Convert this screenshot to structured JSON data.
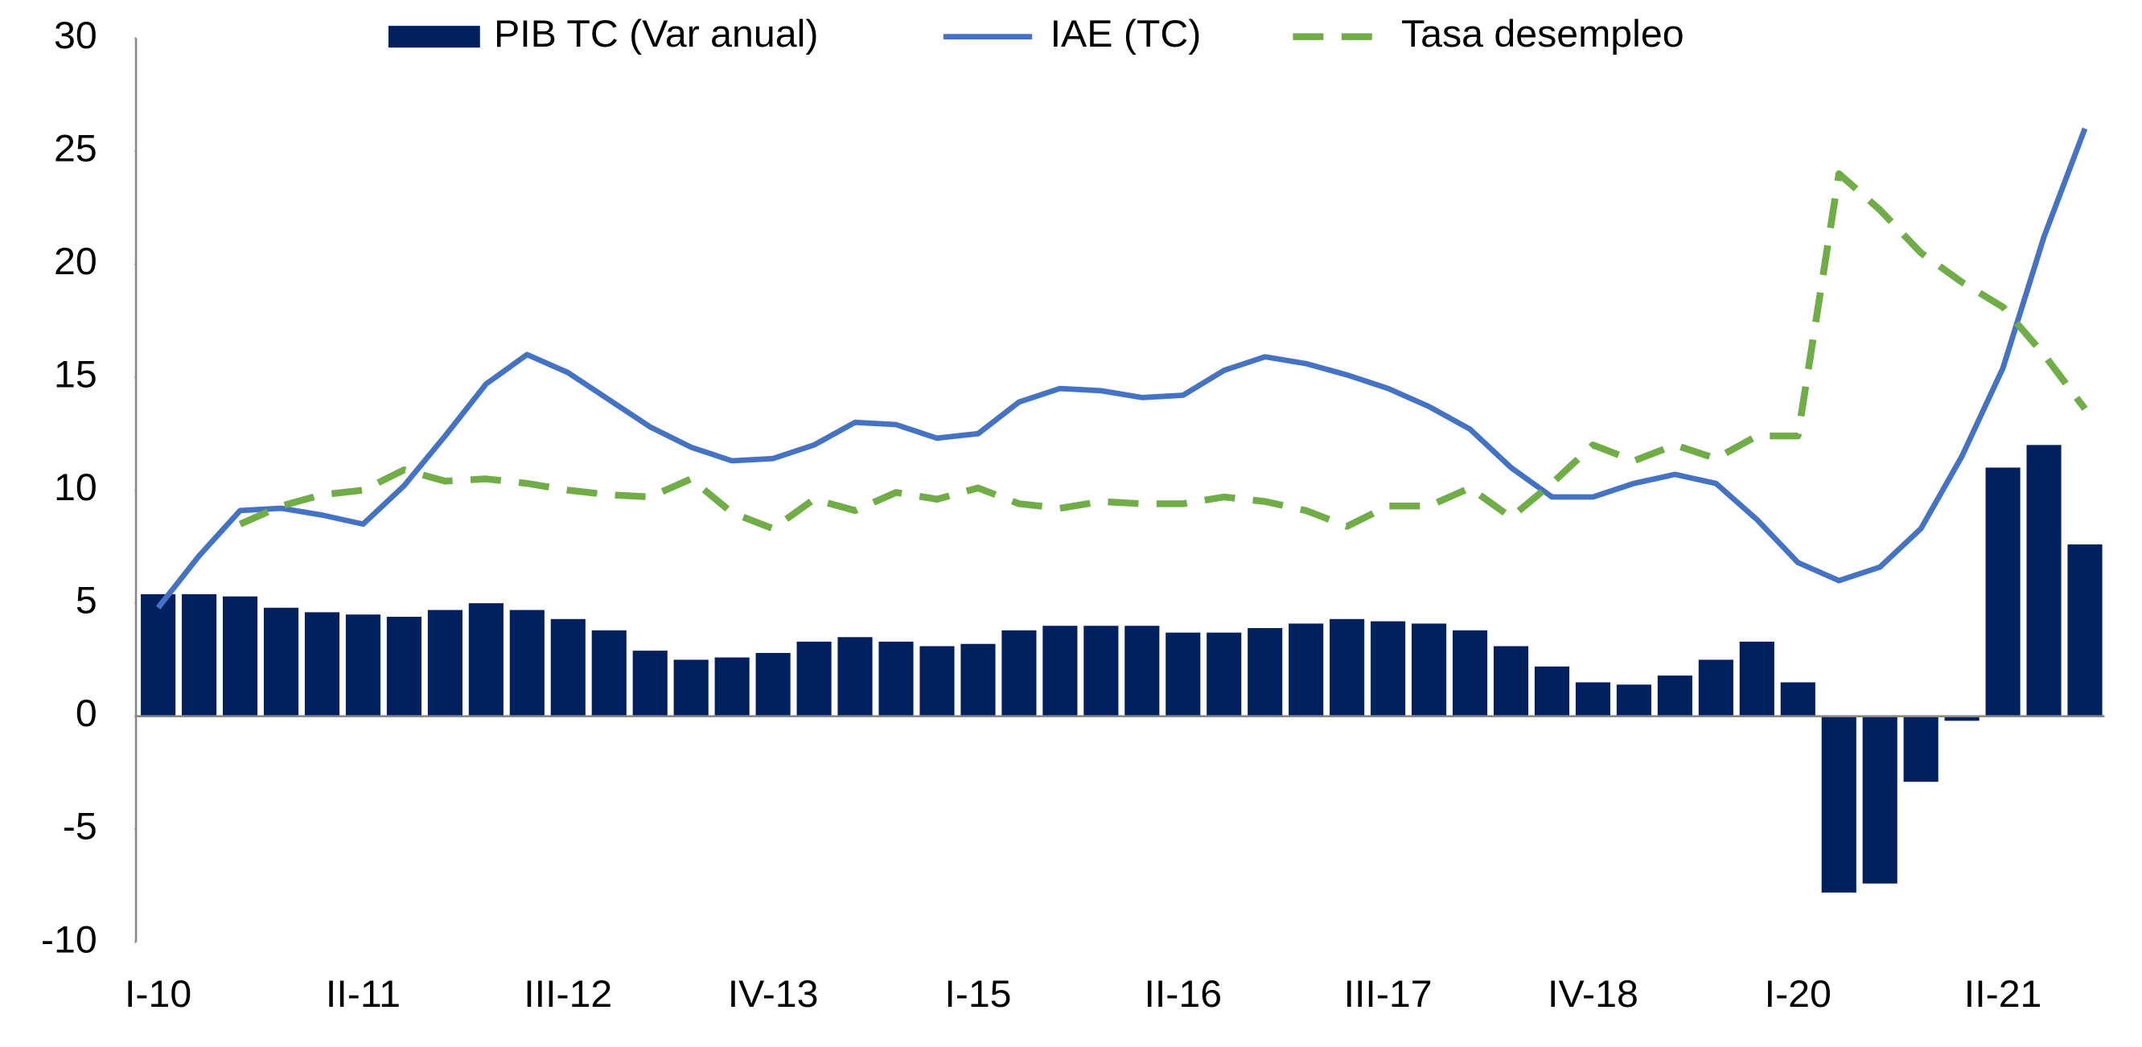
{
  "chart_data": {
    "type": "bar",
    "categories": [
      "I-10",
      null,
      null,
      null,
      null,
      "II-11",
      null,
      null,
      null,
      null,
      "III-12",
      null,
      null,
      null,
      null,
      "IV-13",
      null,
      null,
      null,
      null,
      "I-15",
      null,
      null,
      null,
      null,
      "II-16",
      null,
      null,
      null,
      null,
      "III-17",
      null,
      null,
      null,
      null,
      "IV-18",
      null,
      null,
      null,
      null,
      "I-20",
      null,
      null,
      null,
      null,
      "II-21",
      null,
      null
    ],
    "series": [
      {
        "name": "PIB TC (Var anual)",
        "type": "bar",
        "color": "#002060",
        "values": [
          5.4,
          5.4,
          5.3,
          4.8,
          4.6,
          4.5,
          4.4,
          4.7,
          5.0,
          4.7,
          4.3,
          3.8,
          2.9,
          2.5,
          2.6,
          2.8,
          3.3,
          3.5,
          3.3,
          3.1,
          3.2,
          3.8,
          4.0,
          4.0,
          4.0,
          3.7,
          3.7,
          3.9,
          4.1,
          4.3,
          4.2,
          4.1,
          3.8,
          3.1,
          2.2,
          1.5,
          1.4,
          1.8,
          2.5,
          3.3,
          1.5,
          -7.8,
          -7.4,
          -2.9,
          -0.2,
          11.0,
          12.0,
          7.6
        ]
      },
      {
        "name": "IAE (TC)",
        "type": "line",
        "color": "#4472c4",
        "values": [
          4.8,
          7.1,
          9.1,
          9.2,
          8.9,
          8.5,
          10.2,
          12.4,
          14.7,
          16.0,
          15.2,
          14.0,
          12.8,
          11.9,
          11.3,
          11.4,
          12.0,
          13.0,
          12.9,
          12.3,
          12.5,
          13.9,
          14.5,
          14.4,
          14.1,
          14.2,
          15.3,
          15.9,
          15.6,
          15.1,
          14.5,
          13.7,
          12.7,
          11.0,
          9.7,
          9.7,
          10.3,
          10.7,
          10.3,
          8.7,
          6.8,
          6.0,
          6.6,
          8.3,
          11.5,
          15.4,
          21.2,
          26.0
        ]
      },
      {
        "name": "Tasa desempleo",
        "type": "dashed-line",
        "color": "#70ad47",
        "values": [
          null,
          null,
          8.5,
          9.3,
          9.8,
          10.0,
          10.9,
          10.4,
          10.5,
          10.3,
          10.0,
          9.8,
          9.7,
          10.5,
          9.0,
          8.3,
          9.6,
          9.1,
          9.9,
          9.6,
          10.1,
          9.4,
          9.2,
          9.5,
          9.4,
          9.4,
          9.7,
          9.5,
          9.1,
          8.4,
          9.3,
          9.3,
          10.1,
          8.8,
          10.3,
          12.0,
          11.3,
          12.0,
          11.4,
          12.4,
          12.4,
          24.0,
          22.4,
          20.5,
          19.2,
          18.1,
          16.0,
          13.6
        ]
      }
    ],
    "ylim": [
      -10,
      30
    ],
    "yticks": [
      -10,
      -5,
      0,
      5,
      10,
      15,
      20,
      25,
      30
    ],
    "grid": false,
    "legend": "top"
  }
}
